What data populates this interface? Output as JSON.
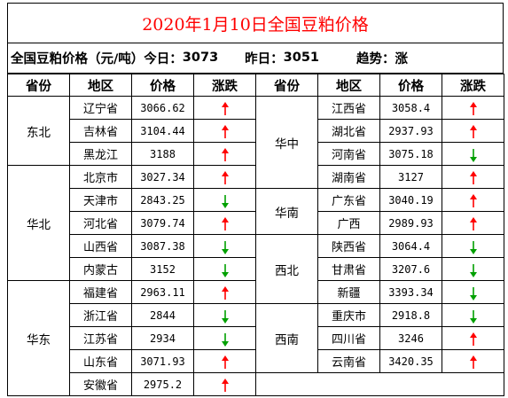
{
  "title": "2020年1月10日全国豆粕价格",
  "summary": {
    "label": "全国豆粕价格（元/吨）",
    "today_label": "今日：",
    "today_value": "3073",
    "yesterday_label": "昨日：",
    "yesterday_value": "3051",
    "trend_label": "趋势：",
    "trend_value": "涨"
  },
  "headers": [
    "省份",
    "地区",
    "价格",
    "涨跌",
    "省份",
    "地区",
    "价格",
    "涨跌"
  ],
  "colors": {
    "title": "#ff0000",
    "up": "#ff0000",
    "down": "#00a000"
  },
  "left_groups": [
    {
      "region": "东北",
      "rows": [
        {
          "province": "辽宁省",
          "price": "3066.62",
          "trend": "up"
        },
        {
          "province": "吉林省",
          "price": "3104.44",
          "trend": "up"
        },
        {
          "province": "黑龙江",
          "price": "3188",
          "trend": "up"
        }
      ]
    },
    {
      "region": "华北",
      "rows": [
        {
          "province": "北京市",
          "price": "3027.34",
          "trend": "up"
        },
        {
          "province": "天津市",
          "price": "2843.25",
          "trend": "down"
        },
        {
          "province": "河北省",
          "price": "3079.74",
          "trend": "up"
        },
        {
          "province": "山西省",
          "price": "3087.38",
          "trend": "down"
        },
        {
          "province": "内蒙古",
          "price": "3152",
          "trend": "down"
        }
      ]
    },
    {
      "region": "华东",
      "rows": [
        {
          "province": "福建省",
          "price": "2963.11",
          "trend": "up"
        },
        {
          "province": "浙江省",
          "price": "2844",
          "trend": "down"
        },
        {
          "province": "江苏省",
          "price": "2934",
          "trend": "down"
        },
        {
          "province": "山东省",
          "price": "3071.93",
          "trend": "up"
        },
        {
          "province": "安徽省",
          "price": "2975.2",
          "trend": "up"
        }
      ]
    }
  ],
  "right_groups": [
    {
      "region": "华中",
      "rows": [
        {
          "province": "江西省",
          "price": "3058.4",
          "trend": "up"
        },
        {
          "province": "湖北省",
          "price": "2937.93",
          "trend": "up"
        },
        {
          "province": "河南省",
          "price": "3075.18",
          "trend": "down"
        },
        {
          "province": "湖南省",
          "price": "3127",
          "trend": "up"
        }
      ]
    },
    {
      "region": "华南",
      "rows": [
        {
          "province": "广东省",
          "price": "3040.19",
          "trend": "up"
        },
        {
          "province": "广西",
          "price": "2989.93",
          "trend": "up"
        }
      ]
    },
    {
      "region": "西北",
      "rows": [
        {
          "province": "陕西省",
          "price": "3064.4",
          "trend": "down"
        },
        {
          "province": "甘肃省",
          "price": "3207.6",
          "trend": "down"
        },
        {
          "province": "新疆",
          "price": "3393.34",
          "trend": "down"
        }
      ]
    },
    {
      "region": "西南",
      "rows": [
        {
          "province": "重庆市",
          "price": "2918.8",
          "trend": "down"
        },
        {
          "province": "四川省",
          "price": "3246",
          "trend": "up"
        },
        {
          "province": "云南省",
          "price": "3420.35",
          "trend": "up"
        }
      ]
    }
  ]
}
